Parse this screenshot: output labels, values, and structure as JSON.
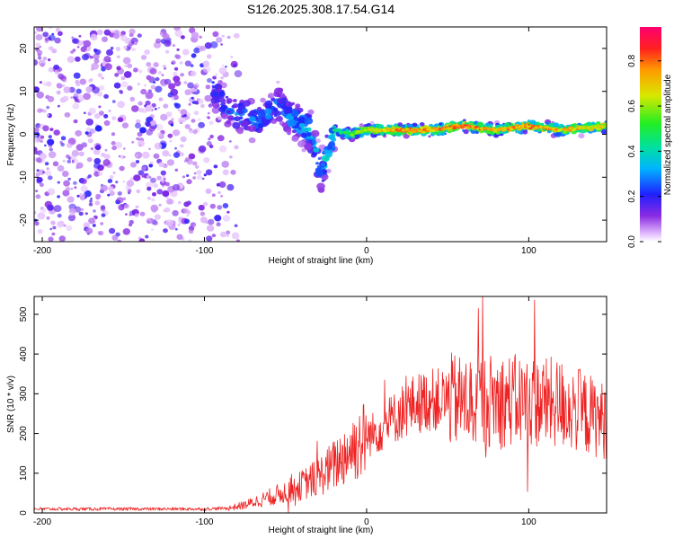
{
  "title": "S126.2025.308.17.54.G14",
  "colors": {
    "snr_line": "#ee2222",
    "axis": "#000000"
  },
  "chart_data": [
    {
      "type": "heatmap",
      "title": "S126.2025.308.17.54.G14",
      "xlabel": "Height of straight line (km)",
      "ylabel": "Frequency (Hz)",
      "xlim": [
        -205,
        148
      ],
      "ylim": [
        -25,
        25
      ],
      "xticks": [
        -200,
        -100,
        0,
        100
      ],
      "yticks": [
        20,
        10,
        0,
        -10,
        -20
      ],
      "colorbar": {
        "label": "Normalized spectral amplitude",
        "range": [
          0,
          0.95
        ],
        "ticks": [
          0.0,
          0.2,
          0.4,
          0.6,
          0.8
        ]
      },
      "noise_region_x": [
        -205,
        -80
      ],
      "signal_track": {
        "x": [
          -95,
          -85,
          -75,
          -65,
          -55,
          -45,
          -35,
          -28,
          -20,
          -10,
          0,
          20,
          40,
          60,
          80,
          100,
          120,
          148
        ],
        "freq": [
          11,
          6,
          4,
          3,
          7,
          3,
          1,
          -9,
          1,
          0,
          1,
          1,
          1,
          2,
          1,
          2,
          1,
          2
        ],
        "amplitude": [
          0.25,
          0.3,
          0.3,
          0.3,
          0.3,
          0.35,
          0.4,
          0.35,
          0.5,
          0.6,
          0.7,
          0.85,
          0.8,
          0.9,
          0.8,
          0.85,
          0.8,
          0.75
        ]
      }
    },
    {
      "type": "line",
      "xlabel": "Height of straight line (km)",
      "ylabel": "SNR (10 * v/v)",
      "xlim": [
        -205,
        148
      ],
      "ylim": [
        0,
        545
      ],
      "xticks": [
        -200,
        -100,
        0,
        100
      ],
      "yticks": [
        0,
        100,
        200,
        300,
        400,
        500
      ],
      "series": [
        {
          "name": "SNR",
          "envelope_x": [
            -205,
            -150,
            -100,
            -85,
            -75,
            -60,
            -45,
            -30,
            -20,
            -10,
            0,
            10,
            20,
            30,
            40,
            50,
            60,
            80,
            100,
            120,
            148
          ],
          "envelope_y": [
            10,
            10,
            10,
            12,
            20,
            40,
            60,
            90,
            120,
            160,
            190,
            215,
            250,
            275,
            285,
            285,
            280,
            285,
            280,
            275,
            230
          ]
        }
      ]
    }
  ]
}
